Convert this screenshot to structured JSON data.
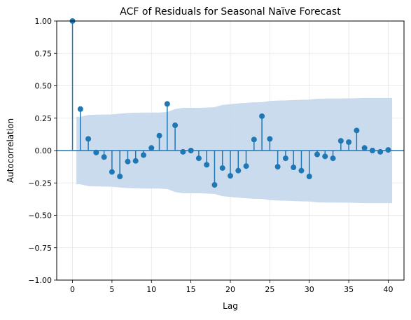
{
  "chart_data": {
    "type": "scatter",
    "title": "ACF of Residuals for Seasonal Naïve Forecast",
    "xlabel": "Lag",
    "ylabel": "Autocorrelation",
    "xlim": [
      -2,
      42
    ],
    "ylim": [
      -1.0,
      1.0
    ],
    "grid": true,
    "x_ticks": [
      0,
      5,
      10,
      15,
      20,
      25,
      30,
      35,
      40
    ],
    "x_tick_labels": [
      "0",
      "5",
      "10",
      "15",
      "20",
      "25",
      "30",
      "35",
      "40"
    ],
    "y_ticks": [
      -1.0,
      -0.75,
      -0.5,
      -0.25,
      0.0,
      0.25,
      0.5,
      0.75,
      1.0
    ],
    "y_tick_labels": [
      "−1.00",
      "−0.75",
      "−0.50",
      "−0.25",
      "0.00",
      "0.25",
      "0.50",
      "0.75",
      "1.00"
    ],
    "lags": [
      0,
      1,
      2,
      3,
      4,
      5,
      6,
      7,
      8,
      9,
      10,
      11,
      12,
      13,
      14,
      15,
      16,
      17,
      18,
      19,
      20,
      21,
      22,
      23,
      24,
      25,
      26,
      27,
      28,
      29,
      30,
      31,
      32,
      33,
      34,
      35,
      36,
      37,
      38,
      39,
      40
    ],
    "acf": [
      1.0,
      0.32,
      0.09,
      -0.015,
      -0.05,
      -0.165,
      -0.2,
      -0.085,
      -0.08,
      -0.035,
      0.02,
      0.115,
      0.36,
      0.195,
      -0.01,
      0.0,
      -0.06,
      -0.11,
      -0.265,
      -0.135,
      -0.195,
      -0.155,
      -0.12,
      0.085,
      0.265,
      0.09,
      -0.125,
      -0.06,
      -0.13,
      -0.155,
      -0.2,
      -0.03,
      -0.045,
      -0.06,
      0.075,
      0.065,
      0.155,
      0.02,
      0.0,
      -0.01,
      0.005
    ],
    "confidence_band": [
      0.0,
      0.26,
      0.275,
      0.277,
      0.278,
      0.279,
      0.285,
      0.29,
      0.292,
      0.293,
      0.293,
      0.293,
      0.297,
      0.32,
      0.33,
      0.33,
      0.33,
      0.332,
      0.335,
      0.352,
      0.358,
      0.364,
      0.368,
      0.372,
      0.373,
      0.383,
      0.386,
      0.387,
      0.39,
      0.392,
      0.393,
      0.4,
      0.401,
      0.401,
      0.402,
      0.403,
      0.404,
      0.406,
      0.406,
      0.406,
      0.406
    ],
    "colors": {
      "stem": "#1f77b4",
      "band": "#c6d9ec",
      "zero_line": "#1f77b4",
      "grid": "#e6e6e6",
      "axis": "#000000"
    }
  }
}
